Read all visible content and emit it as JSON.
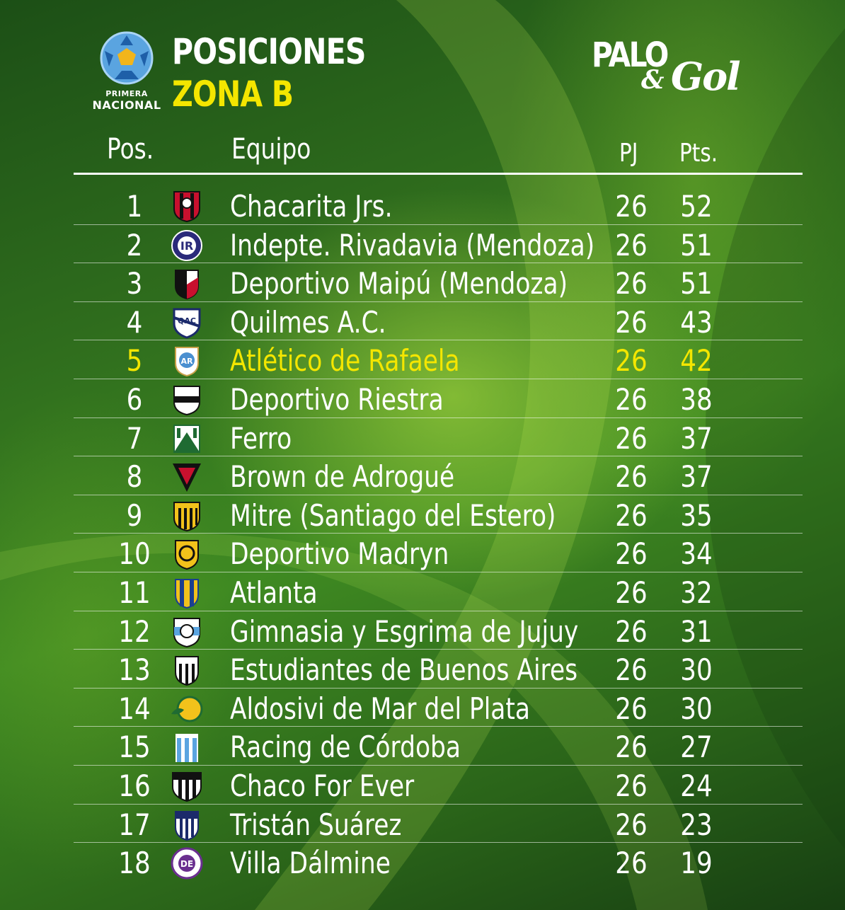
{
  "header": {
    "competition_line1": "PRIMERA",
    "competition_line2": "NACIONAL",
    "title": "POSICIONES",
    "subtitle": "ZONA B",
    "brand_palo": "PALO",
    "brand_amp": "&",
    "brand_gol": "Gol"
  },
  "columns": {
    "pos": "Pos.",
    "team": "Equipo",
    "pj": "PJ",
    "pts": "Pts."
  },
  "colors": {
    "highlight": "#f4e600",
    "text": "#ffffff",
    "background": "#2f6d1d"
  },
  "rows": [
    {
      "pos": "1",
      "team": "Chacarita Jrs.",
      "pj": "26",
      "pts": "52",
      "crest": "chacarita-crest"
    },
    {
      "pos": "2",
      "team": "Indepte. Rivadavia (Mendoza)",
      "pj": "26",
      "pts": "51",
      "crest": "independiente-rivadavia-crest"
    },
    {
      "pos": "3",
      "team": "Deportivo Maipú (Mendoza)",
      "pj": "26",
      "pts": "51",
      "crest": "deportivo-maipu-crest"
    },
    {
      "pos": "4",
      "team": "Quilmes A.C.",
      "pj": "26",
      "pts": "43",
      "crest": "quilmes-crest"
    },
    {
      "pos": "5",
      "team": "Atlético de Rafaela",
      "pj": "26",
      "pts": "42",
      "crest": "atletico-rafaela-crest",
      "highlight": true
    },
    {
      "pos": "6",
      "team": "Deportivo Riestra",
      "pj": "26",
      "pts": "38",
      "crest": "deportivo-riestra-crest"
    },
    {
      "pos": "7",
      "team": "Ferro",
      "pj": "26",
      "pts": "37",
      "crest": "ferro-crest"
    },
    {
      "pos": "8",
      "team": "Brown de Adrogué",
      "pj": "26",
      "pts": "37",
      "crest": "brown-adrogue-crest"
    },
    {
      "pos": "9",
      "team": "Mitre (Santiago del Estero)",
      "pj": "26",
      "pts": "35",
      "crest": "mitre-crest"
    },
    {
      "pos": "10",
      "team": "Deportivo Madryn",
      "pj": "26",
      "pts": "34",
      "crest": "deportivo-madryn-crest"
    },
    {
      "pos": "11",
      "team": "Atlanta",
      "pj": "26",
      "pts": "32",
      "crest": "atlanta-crest"
    },
    {
      "pos": "12",
      "team": "Gimnasia y Esgrima de Jujuy",
      "pj": "26",
      "pts": "31",
      "crest": "gimnasia-jujuy-crest"
    },
    {
      "pos": "13",
      "team": "Estudiantes de Buenos Aires",
      "pj": "26",
      "pts": "30",
      "crest": "estudiantes-ba-crest"
    },
    {
      "pos": "14",
      "team": "Aldosivi de Mar del Plata",
      "pj": "26",
      "pts": "30",
      "crest": "aldosivi-crest"
    },
    {
      "pos": "15",
      "team": "Racing de Córdoba",
      "pj": "26",
      "pts": "27",
      "crest": "racing-cordoba-crest"
    },
    {
      "pos": "16",
      "team": "Chaco For Ever",
      "pj": "26",
      "pts": "24",
      "crest": "chaco-for-ever-crest"
    },
    {
      "pos": "17",
      "team": "Tristán Suárez",
      "pj": "26",
      "pts": "23",
      "crest": "tristan-suarez-crest"
    },
    {
      "pos": "18",
      "team": "Villa Dálmine",
      "pj": "26",
      "pts": "19",
      "crest": "villa-dalmine-crest"
    }
  ]
}
